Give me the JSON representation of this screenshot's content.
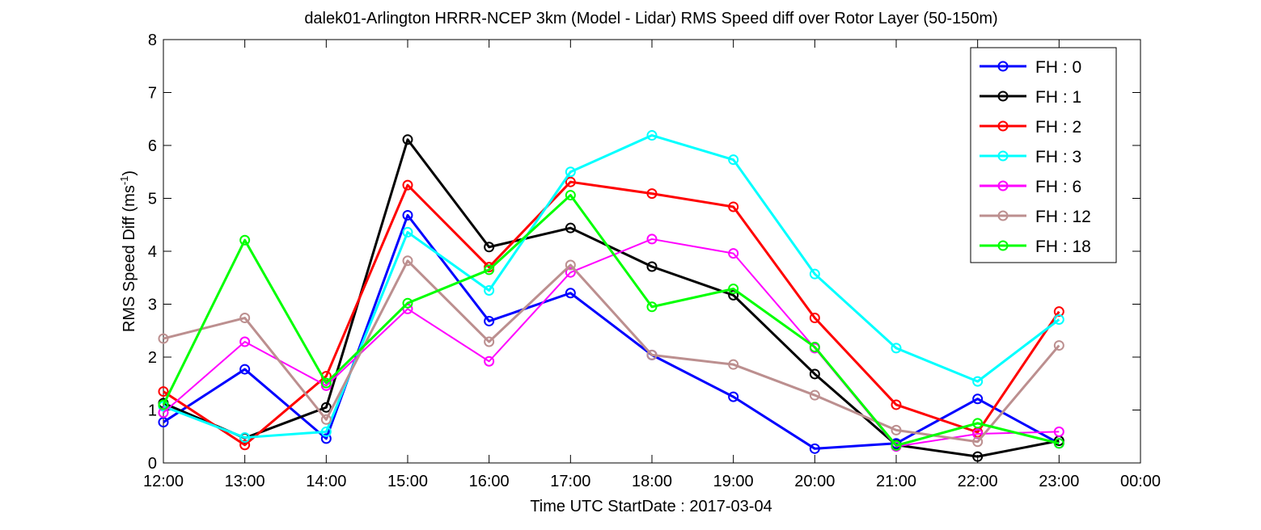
{
  "chart_data": {
    "type": "line",
    "title": "dalek01-Arlington HRRR-NCEP 3km (Model - Lidar) RMS Speed diff over Rotor Layer (50-150m)",
    "xlabel": "Time UTC    StartDate : 2017-03-04",
    "ylabel_main": "RMS Speed Diff (ms",
    "ylabel_sup": "-1",
    "ylabel_close": ")",
    "ylim": [
      0,
      8
    ],
    "yticks": [
      "0",
      "1",
      "2",
      "3",
      "4",
      "5",
      "6",
      "7",
      "8"
    ],
    "xticks": [
      "12:00",
      "13:00",
      "14:00",
      "15:00",
      "16:00",
      "17:00",
      "18:00",
      "19:00",
      "20:00",
      "21:00",
      "22:00",
      "23:00",
      "00:00"
    ],
    "x_range_hours": [
      12,
      24
    ],
    "x": [
      12,
      13,
      14,
      15,
      16,
      17,
      18,
      19,
      20,
      21,
      22,
      23
    ],
    "grid": false,
    "legend_position": "top-right",
    "series": [
      {
        "name": "FH : 0",
        "color": "#0000ff",
        "values": [
          0.77,
          1.77,
          0.46,
          4.68,
          2.68,
          3.21,
          2.04,
          1.25,
          0.27,
          0.37,
          1.21,
          0.37
        ]
      },
      {
        "name": "FH : 1",
        "color": "#000000",
        "values": [
          1.13,
          0.47,
          1.05,
          6.11,
          4.08,
          4.44,
          3.71,
          3.17,
          1.68,
          0.34,
          0.12,
          0.42
        ]
      },
      {
        "name": "FH : 2",
        "color": "#ff0000",
        "values": [
          1.35,
          0.34,
          1.64,
          5.25,
          3.7,
          5.31,
          5.09,
          4.84,
          2.74,
          1.1,
          0.58,
          2.86
        ]
      },
      {
        "name": "FH : 3",
        "color": "#00ffff",
        "values": [
          1.07,
          0.48,
          0.59,
          4.36,
          3.26,
          5.5,
          6.19,
          5.73,
          3.57,
          2.17,
          1.54,
          2.71
        ]
      },
      {
        "name": "FH : 6",
        "color": "#ff00ff",
        "values": [
          0.95,
          2.29,
          1.46,
          2.91,
          1.92,
          3.6,
          4.23,
          3.96,
          2.17,
          0.31,
          0.55,
          0.59
        ]
      },
      {
        "name": "FH : 12",
        "color": "#bc8f8f",
        "values": [
          2.35,
          2.74,
          0.82,
          3.82,
          2.29,
          3.74,
          2.04,
          1.86,
          1.28,
          0.62,
          0.4,
          2.22
        ]
      },
      {
        "name": "FH : 18",
        "color": "#00ff00",
        "values": [
          1.1,
          4.21,
          1.51,
          3.02,
          3.65,
          5.06,
          2.95,
          3.29,
          2.19,
          0.33,
          0.75,
          0.37
        ]
      }
    ]
  }
}
